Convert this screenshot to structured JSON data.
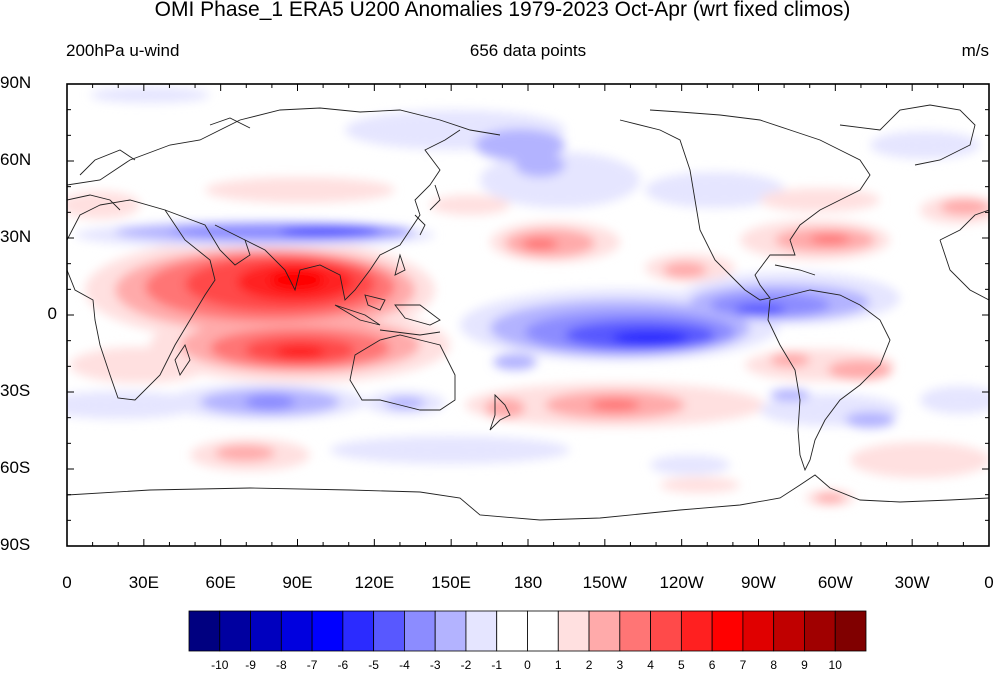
{
  "title": "OMI Phase_1 ERA5 U200 Anomalies 1979-2023 Oct-Apr (wrt fixed climos)",
  "subtitle_left": "200hPa u-wind",
  "subtitle_center": "656 data points",
  "subtitle_right": "m/s",
  "lat_labels": [
    "90N",
    "60N",
    "30N",
    "0",
    "30S",
    "60S",
    "90S"
  ],
  "lon_labels": [
    "0",
    "30E",
    "60E",
    "90E",
    "120E",
    "150E",
    "180",
    "150W",
    "120W",
    "90W",
    "60W",
    "30W",
    "0"
  ],
  "colorbar": {
    "labels": [
      "-10",
      "-9",
      "-8",
      "-7",
      "-6",
      "-5",
      "-4",
      "-3",
      "-2",
      "-1",
      "0",
      "1",
      "2",
      "3",
      "4",
      "5",
      "6",
      "7",
      "8",
      "9",
      "10"
    ],
    "colors": [
      "#000080",
      "#0000a0",
      "#0000bf",
      "#0000df",
      "#0000ff",
      "#2b2bff",
      "#5858ff",
      "#8c8cff",
      "#b3b3ff",
      "#e5e5ff",
      "#ffffff",
      "#ffffff",
      "#ffe0e0",
      "#ffaaaa",
      "#ff7575",
      "#ff4a4a",
      "#ff2020",
      "#ff0000",
      "#e00000",
      "#c00000",
      "#a00000",
      "#800000"
    ]
  },
  "chart_data": {
    "type": "heatmap",
    "title": "OMI Phase_1 ERA5 U200 Anomalies 1979-2023 Oct-Apr (wrt fixed climos)",
    "xlabel": "",
    "ylabel": "",
    "units": "m/s",
    "xlim": [
      0,
      360
    ],
    "ylim": [
      -90,
      90
    ],
    "contour_interval": 1,
    "features": [
      {
        "lon": 90,
        "lat": 13,
        "value": 8
      },
      {
        "lon": 90,
        "lat": -15,
        "value": 6
      },
      {
        "lon": 100,
        "lat": 32,
        "value": -5
      },
      {
        "lon": 225,
        "lat": -9,
        "value": -7
      },
      {
        "lon": 267,
        "lat": 0,
        "value": -5
      },
      {
        "lon": 195,
        "lat": 27,
        "value": 3
      },
      {
        "lon": 225,
        "lat": -35,
        "value": 3
      },
      {
        "lon": 295,
        "lat": 30,
        "value": 3
      },
      {
        "lon": 70,
        "lat": -55,
        "value": 3
      },
      {
        "lon": 95,
        "lat": -35,
        "value": -4
      },
      {
        "lon": 300,
        "lat": -40,
        "value": -3
      },
      {
        "lon": 150,
        "lat": 65,
        "value": -3
      }
    ]
  }
}
